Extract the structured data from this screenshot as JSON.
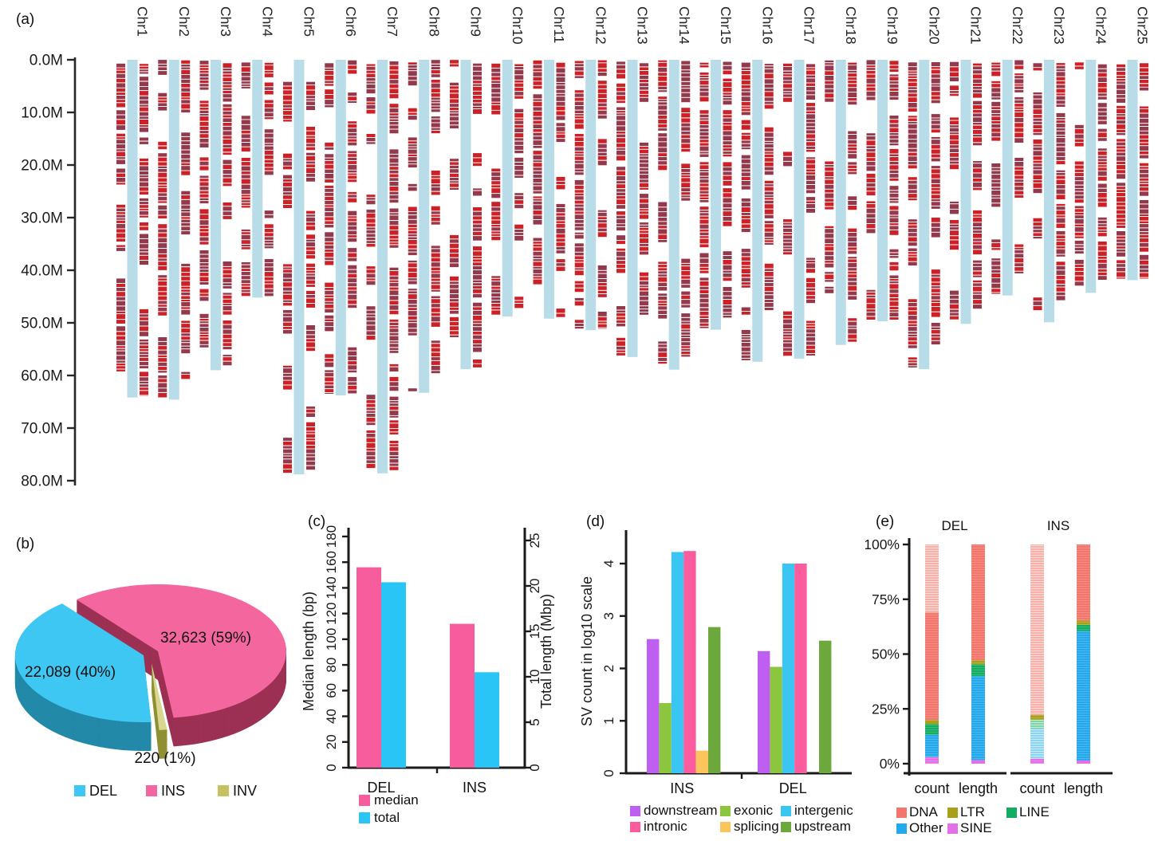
{
  "chart_data": [
    {
      "id": "a",
      "type": "ideogram",
      "panel_label": "(a)",
      "y_axis": {
        "tick_labels": [
          "0.0M",
          "10.0M",
          "20.0M",
          "30.0M",
          "40.0M",
          "50.0M",
          "60.0M",
          "70.0M",
          "80.0M"
        ],
        "max_m": 80
      },
      "chromosomes": [
        {
          "name": "Chr1",
          "length_m": 64.2
        },
        {
          "name": "Chr2",
          "length_m": 64.6
        },
        {
          "name": "Chr3",
          "length_m": 59.0
        },
        {
          "name": "Chr4",
          "length_m": 45.2
        },
        {
          "name": "Chr5",
          "length_m": 78.8,
          "marks_start_m": 4.2
        },
        {
          "name": "Chr6",
          "length_m": 63.8
        },
        {
          "name": "Chr7",
          "length_m": 78.6
        },
        {
          "name": "Chr8",
          "length_m": 63.3
        },
        {
          "name": "Chr9",
          "length_m": 58.8
        },
        {
          "name": "Chr10",
          "length_m": 48.8
        },
        {
          "name": "Chr11",
          "length_m": 49.2
        },
        {
          "name": "Chr12",
          "length_m": 51.4
        },
        {
          "name": "Chr13",
          "length_m": 56.5
        },
        {
          "name": "Chr14",
          "length_m": 58.9
        },
        {
          "name": "Chr15",
          "length_m": 51.3
        },
        {
          "name": "Chr16",
          "length_m": 57.4
        },
        {
          "name": "Chr17",
          "length_m": 56.8
        },
        {
          "name": "Chr18",
          "length_m": 54.2
        },
        {
          "name": "Chr19",
          "length_m": 49.7
        },
        {
          "name": "Chr20",
          "length_m": 58.8
        },
        {
          "name": "Chr21",
          "length_m": 50.2
        },
        {
          "name": "Chr22",
          "length_m": 44.8
        },
        {
          "name": "Chr23",
          "length_m": 49.9
        },
        {
          "name": "Chr24",
          "length_m": 44.3
        },
        {
          "name": "Chr25",
          "length_m": 41.9
        }
      ],
      "colors": {
        "chromosome_bar": "#B9DCE9",
        "mark_bright": "#CB2127",
        "mark_dark": "#94394B",
        "axis": "#262626"
      }
    },
    {
      "id": "b",
      "type": "pie",
      "panel_label": "(b)",
      "slices": [
        {
          "name": "INS",
          "label": "32,623 (59%)",
          "value": 32623,
          "pct": 59,
          "color": "#F4679E",
          "side_color": "#9C3154"
        },
        {
          "name": "INV",
          "label": "220 (1%)",
          "value": 220,
          "pct": 1,
          "color": "#D9D78F",
          "side_color": "#8F8F35"
        },
        {
          "name": "DEL",
          "label": "22,089 (40%)",
          "value": 22089,
          "pct": 40,
          "color": "#3EC7F2",
          "side_color": "#2389A9"
        }
      ],
      "legend": [
        {
          "label": "DEL",
          "color": "#3EC7F2"
        },
        {
          "label": "INS",
          "color": "#F4679E"
        },
        {
          "label": "INV",
          "color": "#C6C262"
        }
      ]
    },
    {
      "id": "c",
      "type": "bar",
      "panel_label": "(c)",
      "categories": [
        "DEL",
        "INS"
      ],
      "left_axis": {
        "title": "Median length (bp)",
        "min": 0,
        "max": 180,
        "step": 20
      },
      "right_axis": {
        "title": "Total length (Mbp)",
        "min": 0,
        "max": 25,
        "step": 5
      },
      "series": [
        {
          "name": "median",
          "axis": "left",
          "color": "#F75C9C",
          "values": [
            156,
            112
          ]
        },
        {
          "name": "total",
          "axis": "right",
          "color": "#29C5F6",
          "values": [
            20.4,
            10.5
          ]
        }
      ],
      "legend": [
        {
          "label": "median",
          "color": "#F75C9C"
        },
        {
          "label": "total",
          "color": "#29C5F6"
        }
      ]
    },
    {
      "id": "d",
      "type": "bar",
      "panel_label": "(d)",
      "y_axis": {
        "title": "SV count in log10 scale",
        "min": 0,
        "max": 4.4,
        "ticks": [
          0,
          1,
          2,
          3,
          4
        ]
      },
      "groups": [
        "INS",
        "DEL"
      ],
      "categories": [
        "downstream",
        "exonic",
        "intergenic",
        "intronic",
        "splicing",
        "upstream"
      ],
      "colors": [
        "#BE5FF2",
        "#8CC63E",
        "#3BC5F2",
        "#FA5C9E",
        "#FBC45D",
        "#6CA83B"
      ],
      "values": {
        "INS": [
          2.56,
          1.34,
          4.22,
          4.24,
          0.43,
          2.79
        ],
        "DEL": [
          2.33,
          2.03,
          4.0,
          4.0,
          null,
          2.53
        ]
      },
      "legend_order": [
        [
          0,
          1,
          2
        ],
        [
          3,
          4,
          5
        ]
      ]
    },
    {
      "id": "e",
      "type": "stacked-bar",
      "panel_label": "(e)",
      "y_axis": {
        "tick_labels": [
          "0%",
          "25%",
          "50%",
          "75%",
          "100%"
        ],
        "ticks": [
          0,
          25,
          50,
          75,
          100
        ]
      },
      "groups": [
        {
          "name": "DEL",
          "bars": [
            {
              "label": "count",
              "segments": [
                {
                  "cat": "SINE",
                  "pct": 3.0
                },
                {
                  "cat": "Other",
                  "pct": 10.2
                },
                {
                  "cat": "LINE",
                  "pct": 4.9
                },
                {
                  "cat": "LTR",
                  "pct": 1.8
                },
                {
                  "cat": "DNA",
                  "pct": 49.1
                },
                {
                  "cat": "DNA",
                  "pct": 31.0,
                  "light": true
                }
              ]
            },
            {
              "label": "length",
              "segments": [
                {
                  "cat": "SINE",
                  "pct": 1.7
                },
                {
                  "cat": "Other",
                  "pct": 38.2
                },
                {
                  "cat": "LINE",
                  "pct": 5.4
                },
                {
                  "cat": "LTR",
                  "pct": 1.9
                },
                {
                  "cat": "DNA",
                  "pct": 52.8
                }
              ]
            }
          ]
        },
        {
          "name": "INS",
          "bars": [
            {
              "label": "count",
              "segments": [
                {
                  "cat": "SINE",
                  "pct": 2.3
                },
                {
                  "cat": "Other",
                  "pct": 13.7,
                  "light": true
                },
                {
                  "cat": "LINE",
                  "pct": 4.1,
                  "light": true
                },
                {
                  "cat": "LTR",
                  "pct": 2.2
                },
                {
                  "cat": "DNA",
                  "pct": 77.7,
                  "light": true
                }
              ]
            },
            {
              "label": "length",
              "segments": [
                {
                  "cat": "SINE",
                  "pct": 1.5
                },
                {
                  "cat": "Other",
                  "pct": 59.0
                },
                {
                  "cat": "LINE",
                  "pct": 2.8
                },
                {
                  "cat": "LTR",
                  "pct": 2.0
                },
                {
                  "cat": "DNA",
                  "pct": 34.7
                }
              ]
            }
          ]
        }
      ],
      "colors": {
        "DNA": "#F4756B",
        "LTR": "#A8A018",
        "LINE": "#12AC62",
        "Other": "#23A8EC",
        "SINE": "#E46FE8"
      },
      "light_colors": {
        "DNA": "#F9B0A9",
        "LTR": "#C6C25E",
        "LINE": "#7FD4A8",
        "Other": "#8BD4F5",
        "SINE": "#F0A8F0"
      },
      "legend_rows": [
        [
          "DNA",
          "LTR",
          "LINE"
        ],
        [
          "Other",
          "SINE"
        ]
      ]
    }
  ]
}
